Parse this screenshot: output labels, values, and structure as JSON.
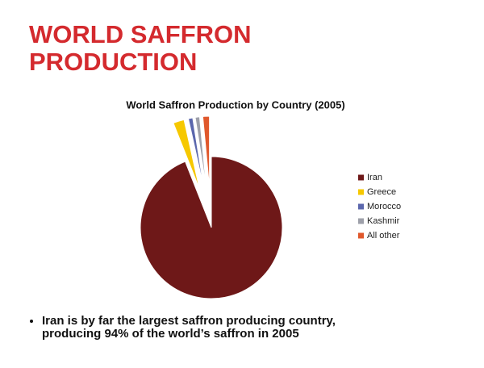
{
  "slide_title": "WORLD SAFFRON PRODUCTION",
  "bullet": "Iran is by far the largest saffron producing country, producing 94% of the world’s saffron in 2005",
  "chart_data": {
    "type": "pie",
    "title": "World Saffron Production by Country (2005)",
    "categories": [
      "Iran",
      "Greece",
      "Morocco",
      "Kashmir",
      "All other"
    ],
    "values": [
      94,
      2.5,
      1,
      1,
      1.5
    ],
    "colors": [
      "#6e1818",
      "#f6c800",
      "#5b67ad",
      "#9ea0aa",
      "#e0582c"
    ],
    "legend": "right"
  }
}
